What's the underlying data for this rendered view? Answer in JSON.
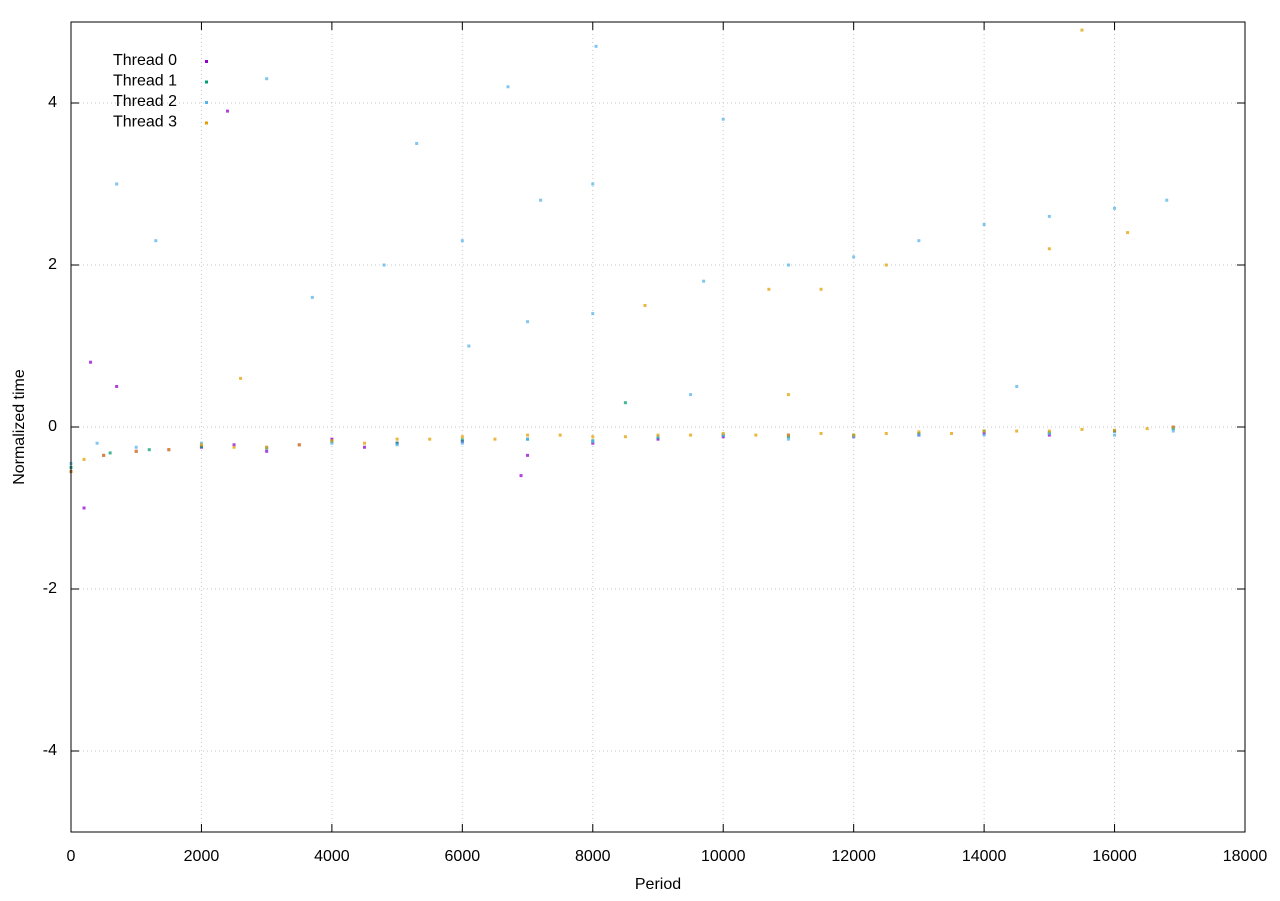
{
  "chart_data": {
    "type": "scatter",
    "x_label": "Period",
    "y_label": "Normalized time",
    "xlim": [
      0,
      18000
    ],
    "ylim": [
      -5,
      5
    ],
    "xticks": [
      0,
      2000,
      4000,
      6000,
      8000,
      10000,
      12000,
      14000,
      16000,
      18000
    ],
    "yticks": [
      -4,
      -2,
      0,
      2,
      4
    ],
    "grid": true,
    "legend": "top-left",
    "series": [
      {
        "name": "Thread 0",
        "color": "#9400d3",
        "x": [
          0,
          300,
          500,
          1000,
          1500,
          2000,
          2500,
          3000,
          3500,
          4000,
          4500,
          5000,
          6000,
          7000,
          8000,
          9000,
          10000,
          11000,
          12000,
          13000,
          14000,
          15000,
          16000,
          16900,
          200,
          2400,
          700,
          6900
        ],
        "values": [
          -0.55,
          0.8,
          -0.35,
          -0.3,
          -0.28,
          -0.25,
          -0.22,
          -0.3,
          -0.22,
          -0.15,
          -0.25,
          -0.2,
          -0.18,
          -0.35,
          -0.2,
          -0.15,
          -0.12,
          -0.1,
          -0.12,
          -0.1,
          -0.08,
          -0.1,
          -0.05,
          0.0,
          -1.0,
          3.9,
          0.5,
          -0.6
        ]
      },
      {
        "name": "Thread 1",
        "color": "#009e73",
        "x": [
          0,
          600,
          1200,
          2000,
          3000,
          4000,
          5000,
          6000,
          7000,
          8000,
          9000,
          10000,
          11000,
          12000,
          13000,
          14000,
          15000,
          16000,
          16900,
          8500
        ],
        "values": [
          -0.5,
          -0.32,
          -0.28,
          -0.24,
          -0.26,
          -0.18,
          -0.2,
          -0.16,
          -0.15,
          -0.17,
          -0.13,
          -0.1,
          -0.12,
          -0.1,
          -0.08,
          -0.05,
          -0.07,
          -0.05,
          -0.02,
          0.3
        ]
      },
      {
        "name": "Thread 2",
        "color": "#56b4e9",
        "x": [
          0,
          400,
          1000,
          2000,
          3000,
          4000,
          5000,
          6000,
          7000,
          8000,
          9000,
          10000,
          11000,
          12000,
          13000,
          14000,
          15000,
          16000,
          16900,
          700,
          1300,
          3000,
          3700,
          4800,
          5300,
          6000,
          6100,
          7000,
          7200,
          8000,
          8000,
          8050,
          9700,
          10000,
          11000,
          12000,
          13000,
          14000,
          15000,
          16000,
          16800,
          6700,
          14500,
          9500
        ],
        "values": [
          -0.45,
          -0.2,
          -0.25,
          -0.2,
          -0.25,
          -0.2,
          -0.22,
          -0.2,
          -0.15,
          -0.18,
          -0.12,
          -0.1,
          -0.15,
          -0.12,
          -0.1,
          -0.1,
          -0.08,
          -0.1,
          -0.05,
          3.0,
          2.3,
          4.3,
          1.6,
          2.0,
          3.5,
          2.3,
          1.0,
          1.3,
          2.8,
          1.4,
          3.0,
          4.7,
          1.8,
          3.8,
          2.0,
          2.1,
          2.3,
          2.5,
          2.6,
          2.7,
          2.8,
          4.2,
          0.5,
          0.4
        ]
      },
      {
        "name": "Thread 3",
        "color": "#e69f00",
        "x": [
          0,
          200,
          500,
          1000,
          1500,
          2000,
          2500,
          3000,
          3500,
          4000,
          4500,
          5000,
          5500,
          6000,
          6500,
          7000,
          7500,
          8000,
          8500,
          9000,
          9500,
          10000,
          10500,
          11000,
          11500,
          12000,
          12500,
          13000,
          13500,
          14000,
          14500,
          15000,
          15500,
          16000,
          16500,
          16900,
          8800,
          10700,
          11500,
          12500,
          15000,
          16200,
          15500,
          11000,
          2600
        ],
        "values": [
          -0.55,
          -0.4,
          -0.35,
          -0.3,
          -0.28,
          -0.22,
          -0.25,
          -0.25,
          -0.22,
          -0.17,
          -0.2,
          -0.15,
          -0.15,
          -0.12,
          -0.15,
          -0.1,
          -0.1,
          -0.12,
          -0.12,
          -0.1,
          -0.1,
          -0.08,
          -0.1,
          -0.1,
          -0.08,
          -0.1,
          -0.08,
          -0.06,
          -0.08,
          -0.05,
          -0.05,
          -0.05,
          -0.03,
          -0.04,
          -0.02,
          0.0,
          1.5,
          1.7,
          1.7,
          2.0,
          2.2,
          2.4,
          4.9,
          0.4,
          0.6
        ]
      }
    ]
  }
}
